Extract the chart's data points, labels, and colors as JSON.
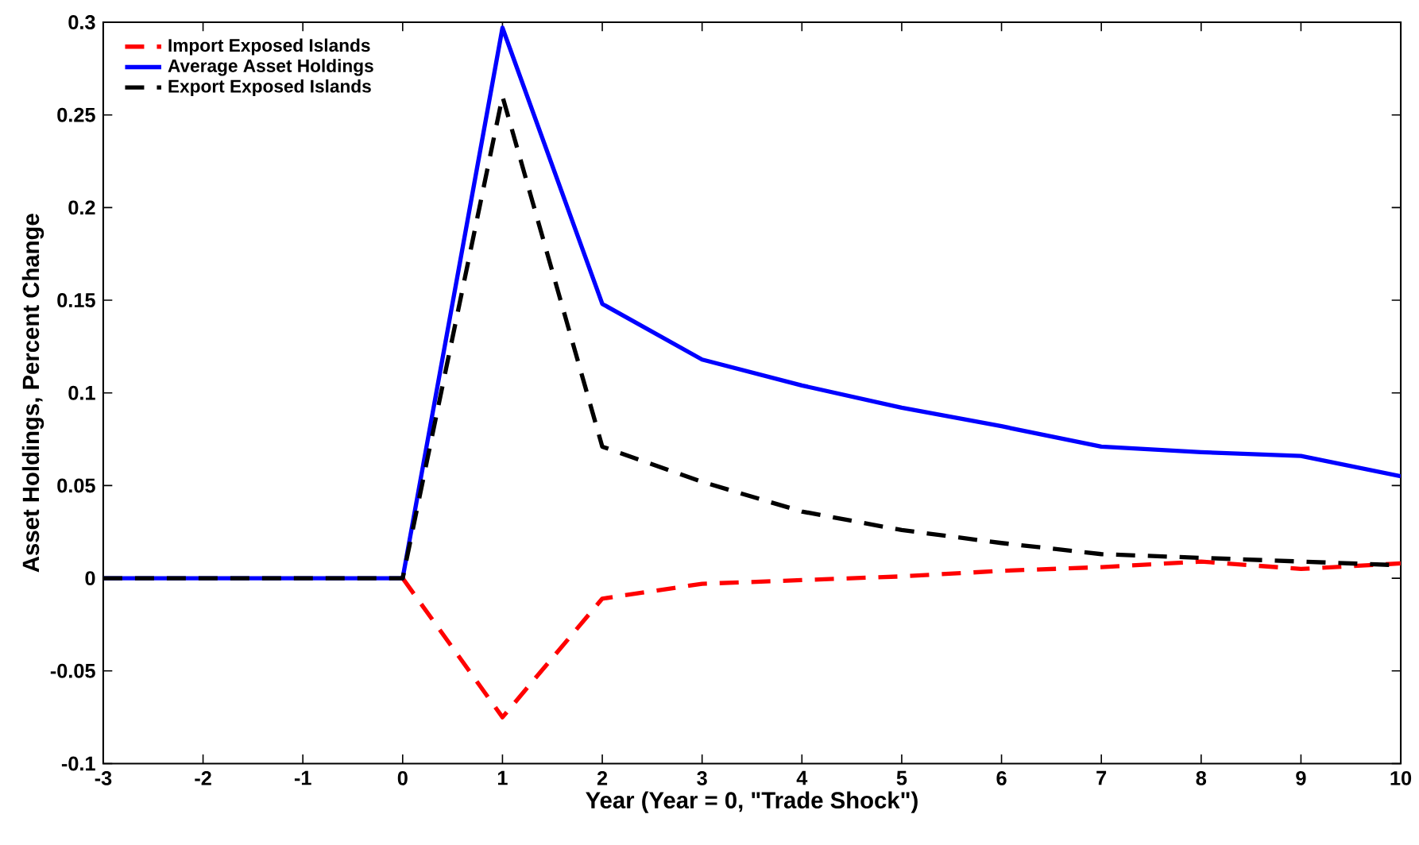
{
  "chart_data": {
    "type": "line",
    "xlabel": "Year  (Year = 0, \"Trade Shock\")",
    "ylabel": "Asset Holdings, Percent Change",
    "x": [
      -3,
      -2,
      -1,
      0,
      1,
      2,
      3,
      4,
      5,
      6,
      7,
      8,
      9,
      10
    ],
    "series": [
      {
        "name": "Import Exposed Islands",
        "color": "#ff0000",
        "line_style": "dashed",
        "values": [
          null,
          null,
          null,
          0,
          -0.075,
          -0.011,
          -0.003,
          -0.001,
          0.001,
          0.004,
          0.006,
          0.009,
          0.005,
          0.008
        ]
      },
      {
        "name": "Average Asset Holdings",
        "color": "#0000ff",
        "line_style": "solid",
        "values": [
          0,
          0,
          0,
          0,
          0.297,
          0.148,
          0.118,
          0.104,
          0.092,
          0.082,
          0.071,
          0.068,
          0.066,
          0.055
        ]
      },
      {
        "name": "Export Exposed Islands",
        "color": "#000000",
        "line_style": "dashed",
        "values": [
          0,
          0,
          0,
          0,
          0.26,
          0.071,
          0.052,
          0.036,
          0.026,
          0.019,
          0.013,
          0.011,
          0.009,
          0.007
        ]
      }
    ],
    "xlim": [
      -3,
      10
    ],
    "ylim": [
      -0.1,
      0.3
    ],
    "xticks": [
      -3,
      -2,
      -1,
      0,
      1,
      2,
      3,
      4,
      5,
      6,
      7,
      8,
      9,
      10
    ],
    "yticks": [
      -0.1,
      -0.05,
      0,
      0.05,
      0.1,
      0.15,
      0.2,
      0.25,
      0.3
    ],
    "grid": false,
    "legend": "top left",
    "marker": "none"
  }
}
